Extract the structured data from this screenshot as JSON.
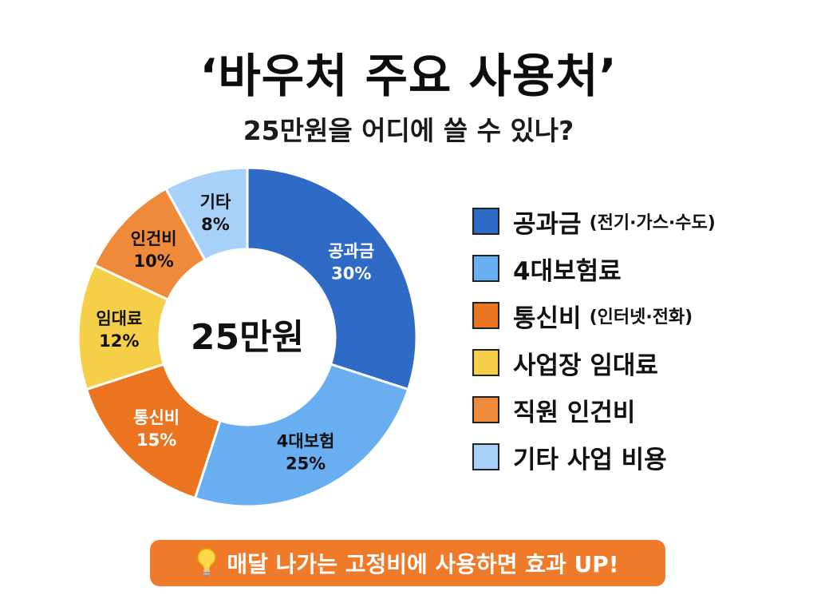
{
  "title": "‘바우처 주요 사용처’",
  "subtitle": "25만원을 어디에 쓸 수 있나?",
  "chart_data": {
    "type": "pie",
    "center_label": "25만원",
    "slices": [
      {
        "label": "공과금",
        "value": 30,
        "value_label": "30%",
        "color": "#2f6ac7",
        "label_color": "#ffffff"
      },
      {
        "label": "4대보험",
        "value": 25,
        "value_label": "25%",
        "color": "#68aef0",
        "label_color": "#111111"
      },
      {
        "label": "통신비",
        "value": 15,
        "value_label": "15%",
        "color": "#ea7420",
        "label_color": "#ffffff"
      },
      {
        "label": "임대료",
        "value": 12,
        "value_label": "12%",
        "color": "#f5cf48",
        "label_color": "#111111"
      },
      {
        "label": "인건비",
        "value": 10,
        "value_label": "10%",
        "color": "#f08a3b",
        "label_color": "#111111"
      },
      {
        "label": "기타",
        "value": 8,
        "value_label": "8%",
        "color": "#a7d1f8",
        "label_color": "#111111"
      }
    ]
  },
  "legend": [
    {
      "label": "공과금",
      "note": "(전기·가스·수도)",
      "color": "#2f6ac7"
    },
    {
      "label": "4대보험료",
      "note": "",
      "color": "#68aef0"
    },
    {
      "label": "통신비",
      "note": "(인터넷·전화)",
      "color": "#ea7420"
    },
    {
      "label": "사업장 임대료",
      "note": "",
      "color": "#f5cf48"
    },
    {
      "label": "직원 인건비",
      "note": "",
      "color": "#f08a3b"
    },
    {
      "label": "기타 사업 비용",
      "note": "",
      "color": "#a7d1f8"
    }
  ],
  "banner": {
    "text": "매달 나가는 고정비에 사용하면 효과 UP!",
    "icon": "lightbulb-icon",
    "color": "#ee7a2a"
  }
}
